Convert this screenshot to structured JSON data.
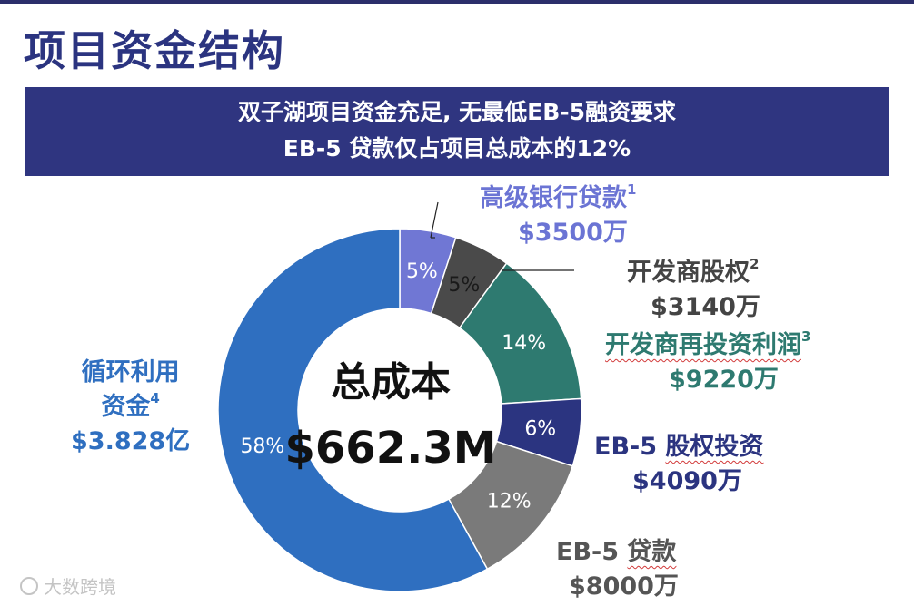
{
  "page": {
    "title": "项目资金结构",
    "banner_line1": "双子湖项目资金充足, 无最低EB-5融资要求",
    "banner_line2": "EB-5 贷款仅占项目总成本的12%",
    "watermark": "大数跨境"
  },
  "chart_data": {
    "type": "pie",
    "donut": true,
    "center_title": "总成本",
    "center_value": "$662.3M",
    "slices": [
      {
        "name": "高级银行贷款",
        "note": "1",
        "amount": "$3500万",
        "percent": 5,
        "percent_label": "5%",
        "color": "#7077d4",
        "label_color": "#6b74d4"
      },
      {
        "name": "开发商股权",
        "note": "2",
        "amount": "$3140万",
        "percent": 5,
        "percent_label": "5%",
        "color": "#4a4a4a",
        "label_color": "#444444"
      },
      {
        "name": "开发商再投资利润",
        "note": "3",
        "amount": "$9220万",
        "percent": 14,
        "percent_label": "14%",
        "color": "#2e7a70",
        "label_color": "#2e7a70"
      },
      {
        "name": "EB-5 股权投资",
        "note": "",
        "amount": "$4090万",
        "percent": 6,
        "percent_label": "6%",
        "color": "#2b3480",
        "label_color": "#2b3480"
      },
      {
        "name": "EB-5 贷款",
        "note": "",
        "amount": "$8000万",
        "percent": 12,
        "percent_label": "12%",
        "color": "#7a7a7a",
        "label_color": "#555555"
      },
      {
        "name": "循环利用资金",
        "note": "4",
        "amount": "$3.828亿",
        "percent": 58,
        "percent_label": "58%",
        "color": "#2f6fc0",
        "label_color": "#2f6fc0"
      }
    ],
    "labels": {
      "bank_loan": {
        "name": "高级银行贷款",
        "note": "1",
        "amount": "$3500万"
      },
      "dev_equity": {
        "name": "开发商股权",
        "note": "2",
        "amount": "$3140万"
      },
      "dev_profit": {
        "name": "开发商再投资利润",
        "note": "3",
        "amount": "$9220万"
      },
      "eb5_equity": {
        "name_prefix": "EB-5 ",
        "name_word": "股权投资",
        "amount": "$4090万"
      },
      "eb5_loan": {
        "name_prefix": "EB-5 ",
        "name_word": "贷款",
        "amount": "$8000万"
      },
      "recycled": {
        "line1": "循环利用",
        "line2": "资金",
        "note": "4",
        "amount": "$3.828亿"
      }
    }
  }
}
